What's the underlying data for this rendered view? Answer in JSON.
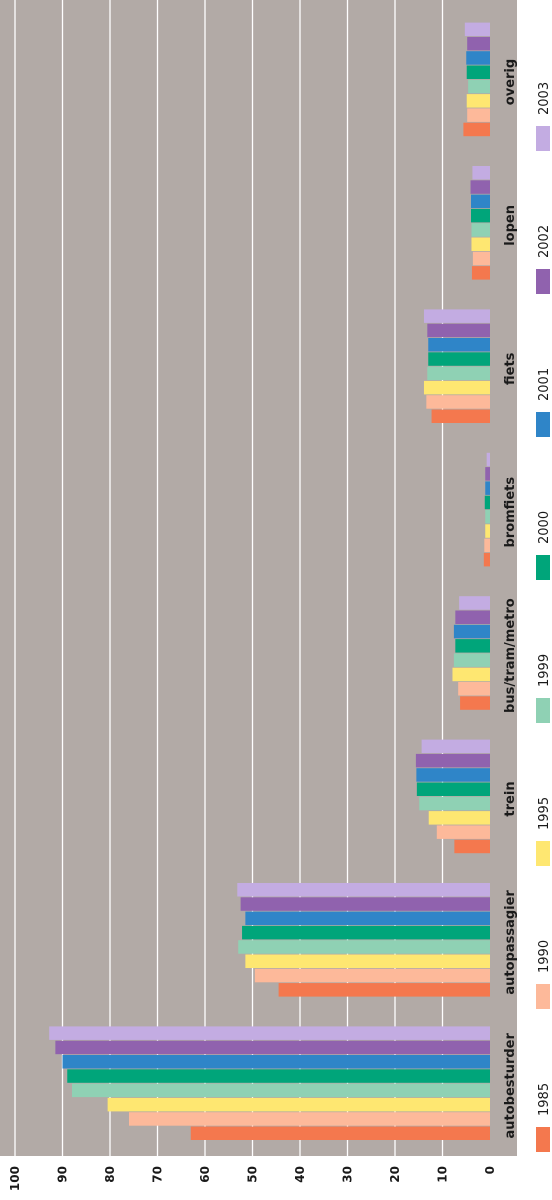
{
  "chart_data": {
    "type": "bar",
    "orientation": "horizontal",
    "xlim": [
      0,
      100
    ],
    "ticks": [
      "0",
      "10",
      "20",
      "30",
      "40",
      "50",
      "60",
      "70",
      "80",
      "90",
      "100"
    ],
    "categories": [
      "autobesturder",
      "autopassagier",
      "trein",
      "bus/tram/metro",
      "bromfiets",
      "fiets",
      "lopen",
      "overig"
    ],
    "series": [
      {
        "name": "1985",
        "color": "#f4784e",
        "values": [
          63,
          44.5,
          7.5,
          6.3,
          1.3,
          12.3,
          3.8,
          5.6
        ]
      },
      {
        "name": "1990",
        "color": "#fdb99a",
        "values": [
          76,
          49.5,
          11.2,
          6.7,
          1.2,
          13.4,
          3.6,
          4.8
        ]
      },
      {
        "name": "1995",
        "color": "#fee771",
        "values": [
          80.5,
          51.5,
          12.9,
          7.9,
          1.0,
          13.9,
          3.9,
          4.9
        ]
      },
      {
        "name": "1999",
        "color": "#8fd1b4",
        "values": [
          88,
          53,
          14.9,
          7.6,
          1.0,
          13.2,
          3.9,
          4.6
        ]
      },
      {
        "name": "2000",
        "color": "#00a57a",
        "values": [
          89,
          52.2,
          15.4,
          7.3,
          1.1,
          13.0,
          4.0,
          4.9
        ]
      },
      {
        "name": "2001",
        "color": "#2f85c8",
        "values": [
          90,
          51.5,
          15.5,
          7.6,
          1.0,
          13.0,
          4.0,
          5.0
        ]
      },
      {
        "name": "2002",
        "color": "#9062ae",
        "values": [
          91.5,
          52.5,
          15.6,
          7.3,
          1.0,
          13.2,
          4.1,
          4.8
        ]
      },
      {
        "name": "2003",
        "color": "#c3ace2",
        "values": [
          92.8,
          53.2,
          14.4,
          6.5,
          0.7,
          13.9,
          3.7,
          5.3
        ]
      }
    ],
    "grid": true,
    "legend": "bottom"
  }
}
